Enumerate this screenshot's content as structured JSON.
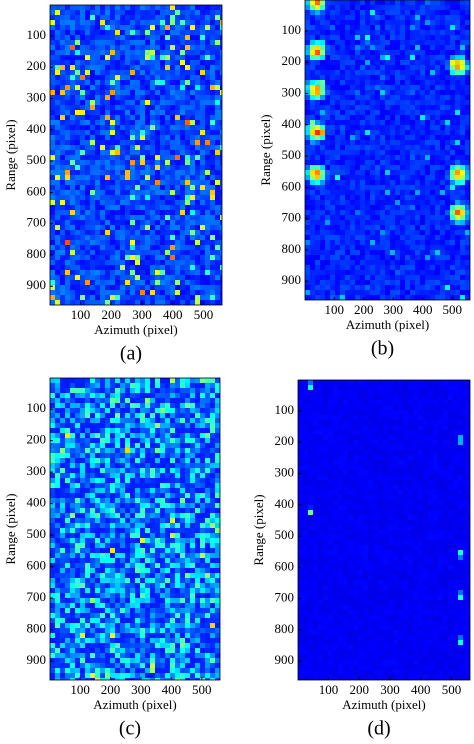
{
  "chart_data": [
    {
      "type": "image",
      "caption": "(a)",
      "xlabel": "Azimuth (pixel)",
      "ylabel": "Range (pixel)",
      "xlim": [
        1,
        560
      ],
      "ylim": [
        1,
        960
      ],
      "xticks": [
        100,
        200,
        300,
        400,
        500
      ],
      "yticks": [
        100,
        200,
        300,
        400,
        500,
        600,
        700,
        800,
        900
      ]
    },
    {
      "type": "image",
      "caption": "(b)",
      "xlabel": "Azimuth (pixel)",
      "ylabel": "Range (pixel)",
      "xlim": [
        1,
        560
      ],
      "ylim": [
        1,
        960
      ],
      "xticks": [
        100,
        200,
        300,
        400,
        500
      ],
      "yticks": [
        100,
        200,
        300,
        400,
        500,
        600,
        700,
        800,
        900
      ]
    },
    {
      "type": "image",
      "caption": "(c)",
      "xlabel": "Azimuth (pixel)",
      "ylabel": "Range (pixel)",
      "xlim": [
        1,
        560
      ],
      "ylim": [
        1,
        960
      ],
      "xticks": [
        100,
        200,
        300,
        400,
        500
      ],
      "yticks": [
        100,
        200,
        300,
        400,
        500,
        600,
        700,
        800,
        900
      ]
    },
    {
      "type": "image",
      "caption": "(d)",
      "xlabel": "Azimuth (pixel)",
      "ylabel": "Range (pixel)",
      "xlim": [
        1,
        560
      ],
      "ylim": [
        1,
        960
      ],
      "xticks": [
        100,
        200,
        300,
        400,
        500
      ],
      "yticks": [
        100,
        200,
        300,
        400,
        500,
        600,
        700,
        800,
        900
      ]
    }
  ]
}
